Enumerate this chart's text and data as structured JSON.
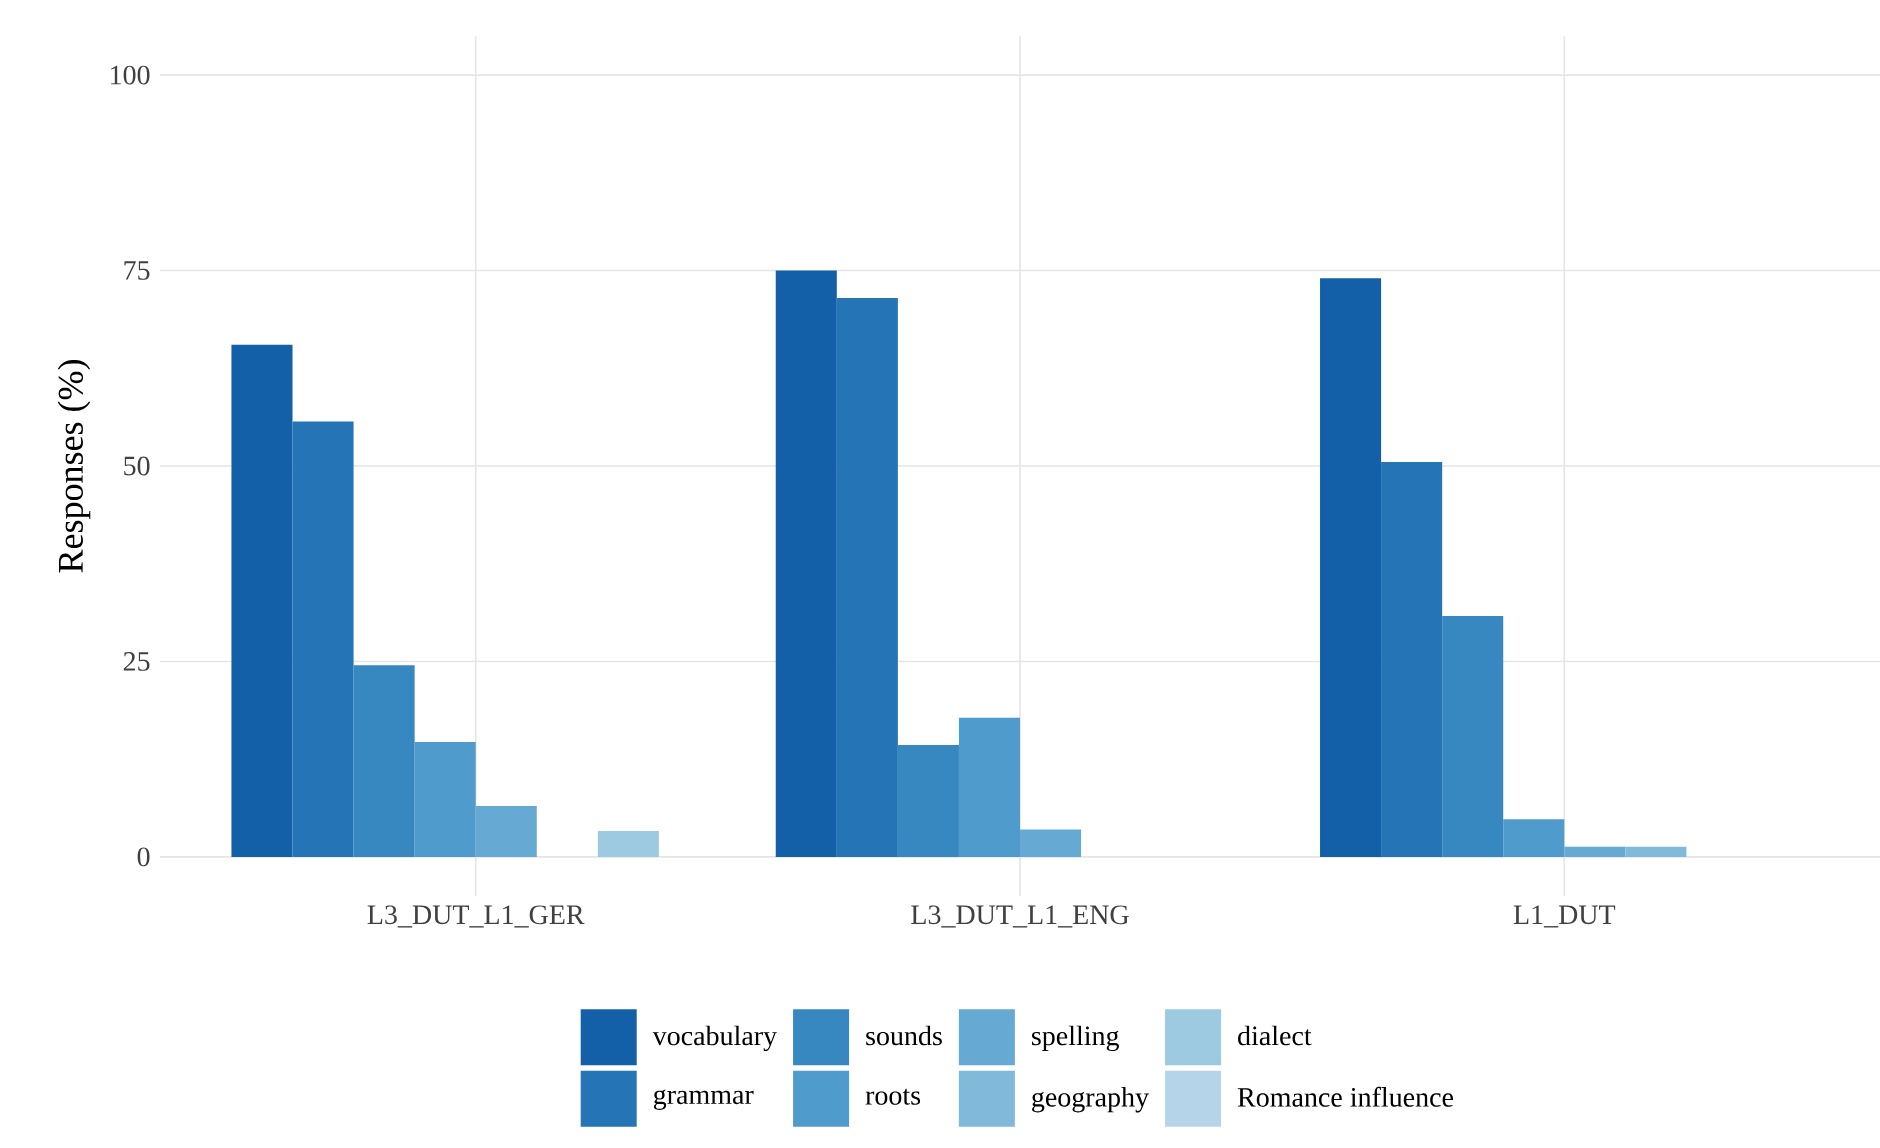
{
  "chart_data": {
    "type": "bar",
    "ylabel": "Responses (%)",
    "categories": [
      "L3_DUT_L1_GER",
      "L3_DUT_L1_ENG",
      "L1_DUT"
    ],
    "series": [
      {
        "name": "vocabulary",
        "color": "#1460a8",
        "values": [
          65.5,
          75,
          74
        ]
      },
      {
        "name": "grammar",
        "color": "#2474b6",
        "values": [
          55.7,
          71.5,
          50.5
        ]
      },
      {
        "name": "sounds",
        "color": "#3787c0",
        "values": [
          24.5,
          14.3,
          30.8
        ]
      },
      {
        "name": "roots",
        "color": "#4f9bcb",
        "values": [
          14.7,
          17.8,
          4.8
        ]
      },
      {
        "name": "spelling",
        "color": "#66aad4",
        "values": [
          6.5,
          3.5,
          1.3
        ]
      },
      {
        "name": "geography",
        "color": "#80b9da",
        "values": [
          null,
          null,
          1.3
        ]
      },
      {
        "name": "dialect",
        "color": "#9dcae1",
        "values": [
          3.3,
          null,
          null
        ]
      },
      {
        "name": "Romance influence",
        "color": "#b6d4e9",
        "values": [
          null,
          null,
          null
        ]
      }
    ],
    "ylim": [
      -5,
      105
    ],
    "yticks": [
      0,
      25,
      50,
      75,
      100
    ],
    "grid": true,
    "legend": "bottom"
  }
}
